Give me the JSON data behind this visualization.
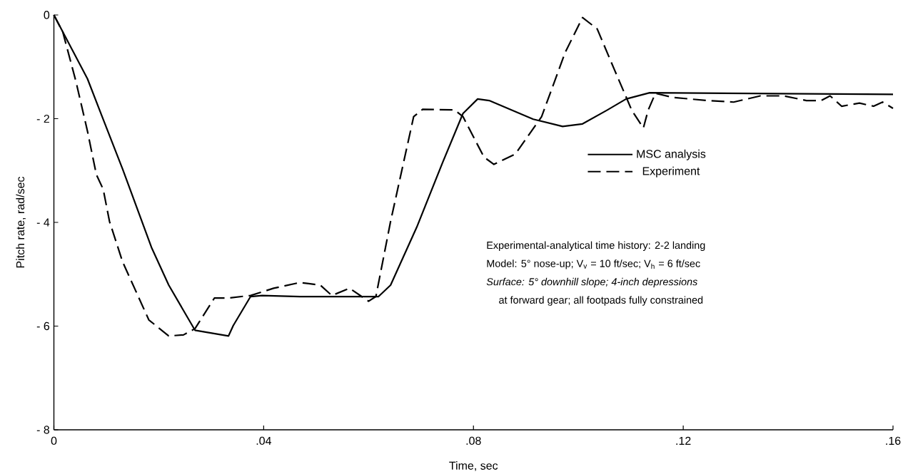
{
  "chart_data": {
    "type": "line",
    "xlabel": "Time, sec",
    "ylabel": "Pitch rate, rad/sec",
    "xlim": [
      0,
      0.16
    ],
    "ylim": [
      -8,
      0
    ],
    "xticks": [
      0,
      {
        "value": 0.04,
        "label": ".04"
      },
      {
        "value": 0.08,
        "label": ".08"
      },
      {
        "value": 0.12,
        "label": ".12"
      },
      {
        "value": 0.16,
        "label": ".16"
      }
    ],
    "yticks": [
      {
        "value": -8,
        "label": "- 8"
      },
      {
        "value": -6,
        "label": "- 6"
      },
      {
        "value": -4,
        "label": "- 4"
      },
      {
        "value": -2,
        "label": "- 2"
      },
      0
    ],
    "legend": "top right",
    "grid": false,
    "series": [
      {
        "name": "MSC analysis",
        "color": "#000000",
        "line_style": "solid",
        "x": [
          0,
          0.0064,
          0.0092,
          0.0131,
          0.0186,
          0.0219,
          0.0269,
          0.0333,
          0.0342,
          0.0375,
          0.0397,
          0.0469,
          0.0619,
          0.0642,
          0.0692,
          0.0741,
          0.078,
          0.0808,
          0.083,
          0.0914,
          0.097,
          0.1008,
          0.1054,
          0.1091,
          0.1136,
          0.16
        ],
        "values": [
          0,
          -1.23,
          -1.96,
          -2.97,
          -4.48,
          -5.21,
          -6.08,
          -6.19,
          -5.99,
          -5.43,
          -5.41,
          -5.43,
          -5.43,
          -5.21,
          -4.09,
          -2.85,
          -1.9,
          -1.62,
          -1.65,
          -2.01,
          -2.15,
          -2.1,
          -1.84,
          -1.62,
          -1.5,
          -1.53
        ]
      },
      {
        "name": "Experiment",
        "color": "#000000",
        "line_style": "dashed",
        "x": [
          0,
          0.0017,
          0.0042,
          0.0064,
          0.0081,
          0.0094,
          0.0106,
          0.0131,
          0.0181,
          0.0219,
          0.0247,
          0.0269,
          0.0306,
          0.0331,
          0.0375,
          0.0419,
          0.0469,
          0.0486,
          0.0508,
          0.053,
          0.0564,
          0.06,
          0.0614,
          0.0642,
          0.0686,
          0.0703,
          0.0764,
          0.078,
          0.082,
          0.0839,
          0.088,
          0.093,
          0.0975,
          0.1008,
          0.1036,
          0.1069,
          0.1102,
          0.1124,
          0.1133,
          0.1147,
          0.118,
          0.1246,
          0.1296,
          0.1347,
          0.1391,
          0.1435,
          0.1463,
          0.148,
          0.1502,
          0.1536,
          0.1563,
          0.158,
          0.16
        ],
        "values": [
          0,
          -0.33,
          -1.28,
          -2.24,
          -3.08,
          -3.36,
          -3.98,
          -4.76,
          -5.88,
          -6.19,
          -6.17,
          -6.05,
          -5.46,
          -5.46,
          -5.41,
          -5.27,
          -5.16,
          -5.18,
          -5.21,
          -5.41,
          -5.27,
          -5.52,
          -5.43,
          -3.98,
          -1.96,
          -1.82,
          -1.83,
          -1.96,
          -2.74,
          -2.88,
          -2.68,
          -1.96,
          -0.72,
          -0.05,
          -0.27,
          -1.06,
          -1.84,
          -2.18,
          -1.84,
          -1.51,
          -1.59,
          -1.65,
          -1.68,
          -1.56,
          -1.56,
          -1.65,
          -1.65,
          -1.56,
          -1.76,
          -1.7,
          -1.76,
          -1.68,
          -1.8
        ]
      }
    ],
    "annotations": [
      "Experimental-analytical time history: 2-2 landing",
      "Model: 5° nose-up; V$_{v}$ = 10 ft/sec; V$_{h}$ = 6 ft/sec",
      "*Surface: 5° downhill slope; 4-inch depressions*",
      "at forward gear; all footpads fully constrained"
    ]
  }
}
